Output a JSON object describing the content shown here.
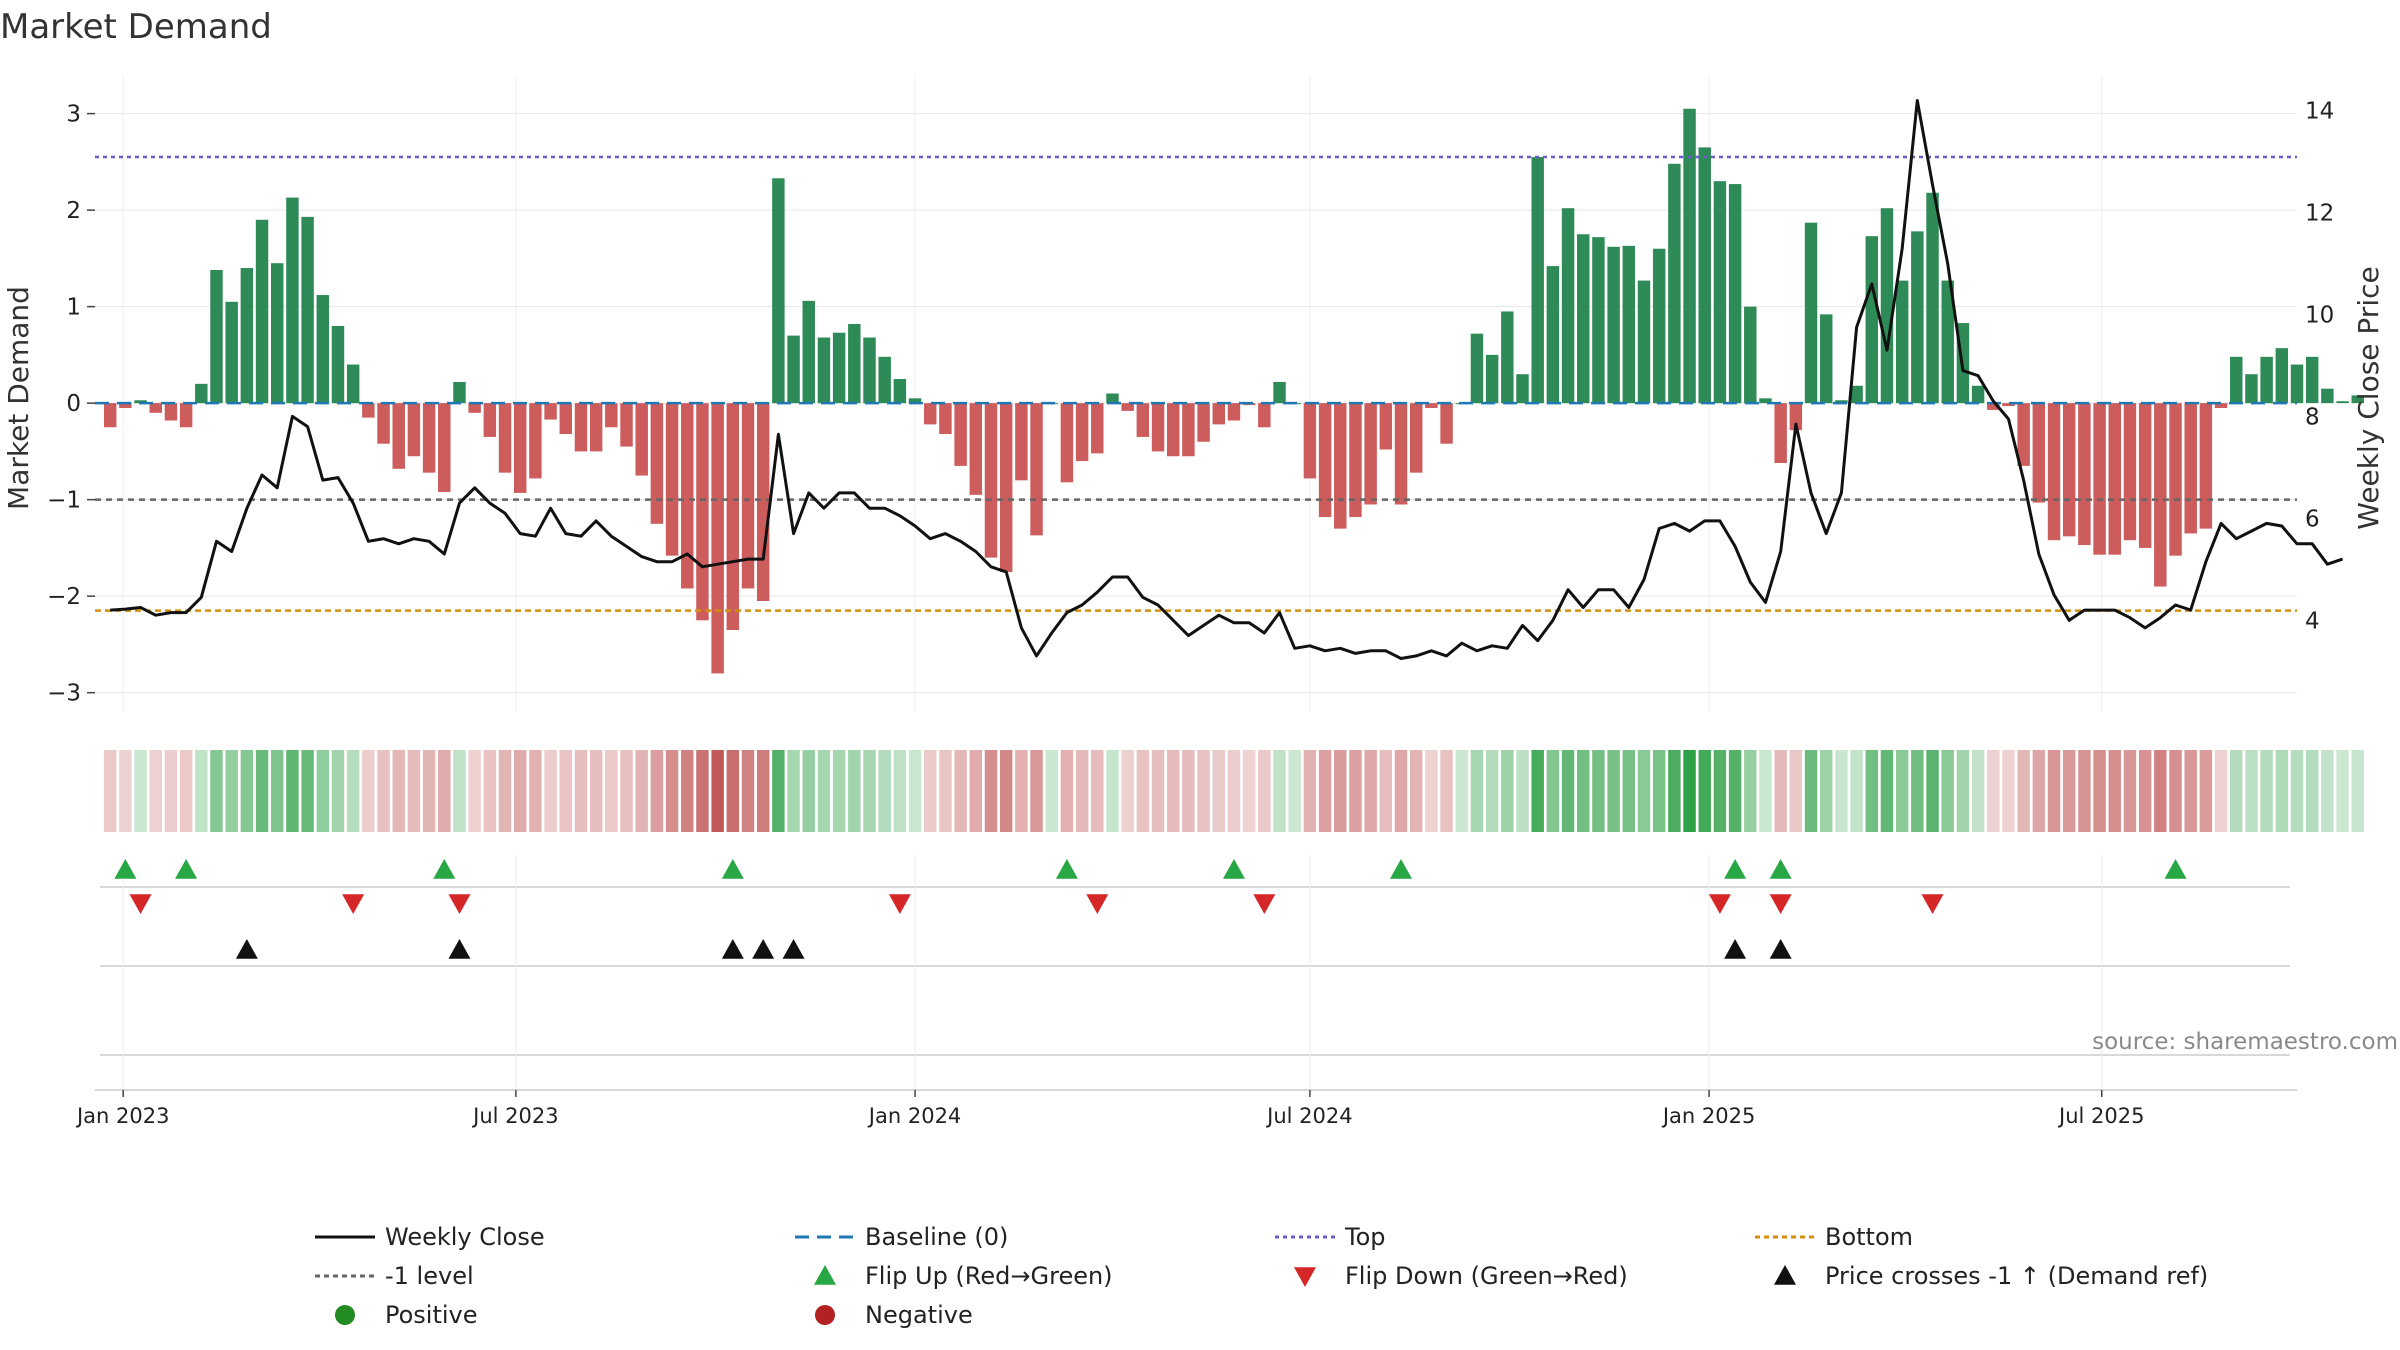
{
  "chart_data": {
    "type": "bar",
    "title": "Market Demand",
    "ylabel": "Market Demand",
    "y2label": "Weekly Close Price",
    "ylim": [
      -3.2,
      3.4
    ],
    "y2lim": [
      2.2,
      14.7
    ],
    "yticks": [
      3,
      2,
      1,
      0,
      -1,
      -2,
      -3
    ],
    "y2ticks": [
      14,
      12,
      10,
      8,
      6,
      4
    ],
    "x_start": "2022-12-19",
    "x_end": "2025-09-29",
    "week0": "2022-12-26",
    "xticks": [
      {
        "label": "Jan 2023",
        "date": "2023-01-01"
      },
      {
        "label": "Jul 2023",
        "date": "2023-07-01"
      },
      {
        "label": "Jan 2024",
        "date": "2024-01-01"
      },
      {
        "label": "Jul 2024",
        "date": "2024-07-01"
      },
      {
        "label": "Jan 2025",
        "date": "2025-01-01"
      },
      {
        "label": "Jul 2025",
        "date": "2025-07-01"
      }
    ],
    "grid": true,
    "reference_lines": {
      "baseline": 0,
      "top": 2.55,
      "minus_one": -1,
      "bottom": -2.15
    },
    "series": [
      {
        "name": "Market Demand",
        "kind": "bar",
        "values": [
          -0.25,
          -0.05,
          0.03,
          -0.1,
          -0.18,
          -0.25,
          0.2,
          1.38,
          1.05,
          1.4,
          1.9,
          1.45,
          2.13,
          1.93,
          1.12,
          0.8,
          0.4,
          -0.15,
          -0.42,
          -0.68,
          -0.55,
          -0.72,
          -0.92,
          0.22,
          -0.1,
          -0.35,
          -0.72,
          -0.93,
          -0.78,
          -0.17,
          -0.32,
          -0.5,
          -0.5,
          -0.25,
          -0.45,
          -0.75,
          -1.25,
          -1.58,
          -1.92,
          -2.25,
          -2.8,
          -2.35,
          -1.92,
          -2.05,
          2.33,
          0.7,
          1.06,
          0.68,
          0.73,
          0.82,
          0.68,
          0.48,
          0.25,
          0.05,
          -0.22,
          -0.32,
          -0.65,
          -0.95,
          -1.6,
          -1.75,
          -0.8,
          -1.37,
          0,
          -0.82,
          -0.6,
          -0.52,
          0.1,
          -0.08,
          -0.35,
          -0.5,
          -0.55,
          -0.55,
          -0.4,
          -0.22,
          -0.18,
          -0.02,
          -0.25,
          0.22,
          0,
          -0.78,
          -1.18,
          -1.3,
          -1.18,
          -1.05,
          -0.48,
          -1.05,
          -0.72,
          -0.05,
          -0.42,
          0,
          0.72,
          0.5,
          0.95,
          0.3,
          2.55,
          1.42,
          2.02,
          1.75,
          1.72,
          1.62,
          1.63,
          1.27,
          1.6,
          2.48,
          3.05,
          2.65,
          2.3,
          2.27,
          1.0,
          0.05,
          -0.62,
          -0.28,
          1.87,
          0.92,
          0.03,
          0.18,
          1.73,
          2.02,
          1.27,
          1.78,
          2.18,
          1.27,
          0.83,
          0.18,
          -0.07,
          -0.03,
          -0.65,
          -1.03,
          -1.42,
          -1.38,
          -1.47,
          -1.57,
          -1.57,
          -1.42,
          -1.5,
          -1.9,
          -1.58,
          -1.35,
          -1.3,
          -0.05,
          0.48,
          0.3,
          0.48,
          0.57,
          0.4,
          0.48,
          0.15,
          0.02,
          0.08
        ]
      },
      {
        "name": "Weekly Close",
        "kind": "line",
        "values": [
          4.2,
          4.22,
          4.25,
          4.1,
          4.15,
          4.15,
          4.45,
          5.55,
          5.35,
          6.2,
          6.85,
          6.6,
          8.0,
          7.8,
          6.75,
          6.8,
          6.3,
          5.55,
          5.6,
          5.5,
          5.6,
          5.55,
          5.3,
          6.3,
          6.6,
          6.3,
          6.1,
          5.7,
          5.65,
          6.2,
          5.7,
          5.65,
          5.95,
          5.65,
          5.45,
          5.25,
          5.15,
          5.15,
          5.3,
          5.05,
          5.1,
          5.15,
          5.2,
          5.2,
          7.65,
          5.7,
          6.5,
          6.2,
          6.5,
          6.5,
          6.2,
          6.2,
          6.05,
          5.85,
          5.6,
          5.7,
          5.55,
          5.35,
          5.05,
          4.95,
          3.85,
          3.3,
          3.75,
          4.15,
          4.3,
          4.55,
          4.85,
          4.85,
          4.45,
          4.3,
          4.0,
          3.7,
          3.9,
          4.1,
          3.95,
          3.95,
          3.75,
          4.15,
          3.45,
          3.5,
          3.4,
          3.45,
          3.35,
          3.4,
          3.4,
          3.25,
          3.3,
          3.4,
          3.3,
          3.55,
          3.4,
          3.5,
          3.45,
          3.9,
          3.6,
          4.0,
          4.6,
          4.25,
          4.6,
          4.6,
          4.25,
          4.8,
          5.8,
          5.9,
          5.75,
          5.95,
          5.95,
          5.45,
          4.75,
          4.35,
          5.35,
          7.85,
          6.5,
          5.7,
          6.5,
          9.75,
          10.6,
          9.3,
          11.3,
          14.2,
          12.55,
          11.0,
          8.9,
          8.8,
          8.3,
          7.95,
          6.75,
          5.3,
          4.5,
          4.0,
          4.2,
          4.2,
          4.2,
          4.05,
          3.85,
          4.05,
          4.3,
          4.2,
          5.15,
          5.9,
          5.6,
          5.75,
          5.9,
          5.85,
          5.5,
          5.5,
          5.1,
          5.2
        ]
      }
    ],
    "markers": {
      "flip_up": [
        1,
        5,
        22,
        41,
        63,
        74,
        85,
        107,
        110,
        136
      ],
      "flip_down": [
        2,
        16,
        23,
        52,
        65,
        76,
        106,
        110,
        120
      ],
      "price_cross": [
        9,
        23,
        41,
        43,
        45,
        107,
        110
      ]
    },
    "legend": [
      {
        "label": "Weekly Close"
      },
      {
        "label": "Baseline (0)"
      },
      {
        "label": "Top"
      },
      {
        "label": "Bottom"
      },
      {
        "label": "-1 level"
      },
      {
        "label": "Flip Up (Red→Green)"
      },
      {
        "label": "Flip Down (Green→Red)"
      },
      {
        "label": "Price crosses -1 ↑ (Demand ref)"
      },
      {
        "label": "Positive"
      },
      {
        "label": "Negative"
      }
    ],
    "legend_placement": "bottom",
    "source": "source: sharemaestro.com"
  },
  "colors": {
    "positive": "#2e8b57",
    "negative": "#cd5c5c",
    "price": "#111111",
    "baseline": "#1f77b4",
    "top": "#6a5acd",
    "minus_one": "#666666",
    "bottom": "#d4900a",
    "flip_up": "#28a745",
    "flip_down": "#d62728",
    "cross": "#111111",
    "legend_positive": "#228b22",
    "legend_negative": "#b22222"
  }
}
